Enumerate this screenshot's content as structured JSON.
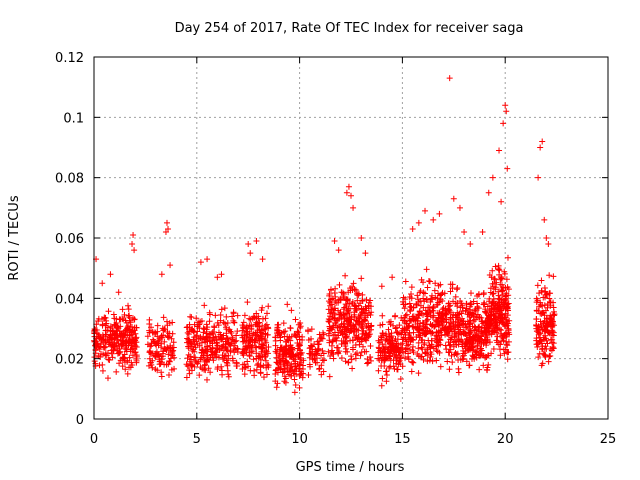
{
  "chart_data": {
    "type": "scatter",
    "title": "Day 254 of 2017, Rate Of TEC Index for receiver saga",
    "xlabel": "GPS time / hours",
    "ylabel": "ROTI / TECUs",
    "xlim": [
      0,
      25
    ],
    "ylim": [
      0,
      0.12
    ],
    "grid": true,
    "marker": "+",
    "x_ticks": [
      {
        "value": 0,
        "label": "0"
      },
      {
        "value": 5,
        "label": "5"
      },
      {
        "value": 10,
        "label": "10"
      },
      {
        "value": 15,
        "label": "15"
      },
      {
        "value": 20,
        "label": "20"
      },
      {
        "value": 25,
        "label": "25"
      }
    ],
    "y_ticks": [
      {
        "value": 0,
        "label": "0"
      },
      {
        "value": 0.02,
        "label": "0.02"
      },
      {
        "value": 0.04,
        "label": "0.04"
      },
      {
        "value": 0.06,
        "label": "0.06"
      },
      {
        "value": 0.08,
        "label": "0.08"
      },
      {
        "value": 0.1,
        "label": "0.1"
      },
      {
        "value": 0.12,
        "label": "0.12"
      }
    ],
    "series": [
      {
        "name": "ROTI",
        "color": "#ff0000",
        "clusters": [
          {
            "x_start": 0.0,
            "x_end": 2.1,
            "y_low": 0.012,
            "y_high": 0.036,
            "count": 280
          },
          {
            "x_start": 2.6,
            "x_end": 3.9,
            "y_low": 0.01,
            "y_high": 0.033,
            "count": 120
          },
          {
            "x_start": 4.5,
            "x_end": 7.0,
            "y_low": 0.01,
            "y_high": 0.036,
            "count": 280
          },
          {
            "x_start": 7.2,
            "x_end": 8.5,
            "y_low": 0.01,
            "y_high": 0.036,
            "count": 180
          },
          {
            "x_start": 8.8,
            "x_end": 10.2,
            "y_low": 0.007,
            "y_high": 0.032,
            "count": 200
          },
          {
            "x_start": 10.4,
            "x_end": 11.2,
            "y_low": 0.012,
            "y_high": 0.03,
            "count": 60
          },
          {
            "x_start": 11.4,
            "x_end": 13.5,
            "y_low": 0.012,
            "y_high": 0.045,
            "count": 320
          },
          {
            "x_start": 13.8,
            "x_end": 15.0,
            "y_low": 0.01,
            "y_high": 0.034,
            "count": 150
          },
          {
            "x_start": 15.0,
            "x_end": 17.5,
            "y_low": 0.012,
            "y_high": 0.045,
            "count": 380
          },
          {
            "x_start": 17.5,
            "x_end": 19.2,
            "y_low": 0.012,
            "y_high": 0.042,
            "count": 300
          },
          {
            "x_start": 19.2,
            "x_end": 20.2,
            "y_low": 0.015,
            "y_high": 0.05,
            "count": 220
          },
          {
            "x_start": 21.5,
            "x_end": 22.4,
            "y_low": 0.013,
            "y_high": 0.045,
            "count": 160
          }
        ],
        "points": [
          [
            0.1,
            0.053
          ],
          [
            0.4,
            0.045
          ],
          [
            0.8,
            0.048
          ],
          [
            1.2,
            0.042
          ],
          [
            1.9,
            0.061
          ],
          [
            1.85,
            0.058
          ],
          [
            1.95,
            0.056
          ],
          [
            3.3,
            0.048
          ],
          [
            3.5,
            0.062
          ],
          [
            3.55,
            0.065
          ],
          [
            3.6,
            0.063
          ],
          [
            3.7,
            0.051
          ],
          [
            5.2,
            0.052
          ],
          [
            5.5,
            0.053
          ],
          [
            6.0,
            0.047
          ],
          [
            6.2,
            0.048
          ],
          [
            7.5,
            0.058
          ],
          [
            7.6,
            0.055
          ],
          [
            7.9,
            0.059
          ],
          [
            8.2,
            0.053
          ],
          [
            9.4,
            0.038
          ],
          [
            9.6,
            0.036
          ],
          [
            9.8,
            0.033
          ],
          [
            11.7,
            0.059
          ],
          [
            11.9,
            0.056
          ],
          [
            12.3,
            0.075
          ],
          [
            12.4,
            0.077
          ],
          [
            12.5,
            0.074
          ],
          [
            12.6,
            0.07
          ],
          [
            13.0,
            0.06
          ],
          [
            13.2,
            0.055
          ],
          [
            14.0,
            0.044
          ],
          [
            14.5,
            0.047
          ],
          [
            15.5,
            0.063
          ],
          [
            15.8,
            0.065
          ],
          [
            16.1,
            0.069
          ],
          [
            16.5,
            0.066
          ],
          [
            16.8,
            0.068
          ],
          [
            17.3,
            0.113
          ],
          [
            17.5,
            0.073
          ],
          [
            17.8,
            0.07
          ],
          [
            18.0,
            0.062
          ],
          [
            18.3,
            0.058
          ],
          [
            18.9,
            0.062
          ],
          [
            19.2,
            0.075
          ],
          [
            19.4,
            0.08
          ],
          [
            19.7,
            0.089
          ],
          [
            19.9,
            0.098
          ],
          [
            20.0,
            0.104
          ],
          [
            20.05,
            0.102
          ],
          [
            20.1,
            0.083
          ],
          [
            19.8,
            0.072
          ],
          [
            21.7,
            0.09
          ],
          [
            21.8,
            0.092
          ],
          [
            21.6,
            0.08
          ],
          [
            21.9,
            0.066
          ],
          [
            22.0,
            0.06
          ],
          [
            22.1,
            0.058
          ]
        ]
      }
    ]
  }
}
